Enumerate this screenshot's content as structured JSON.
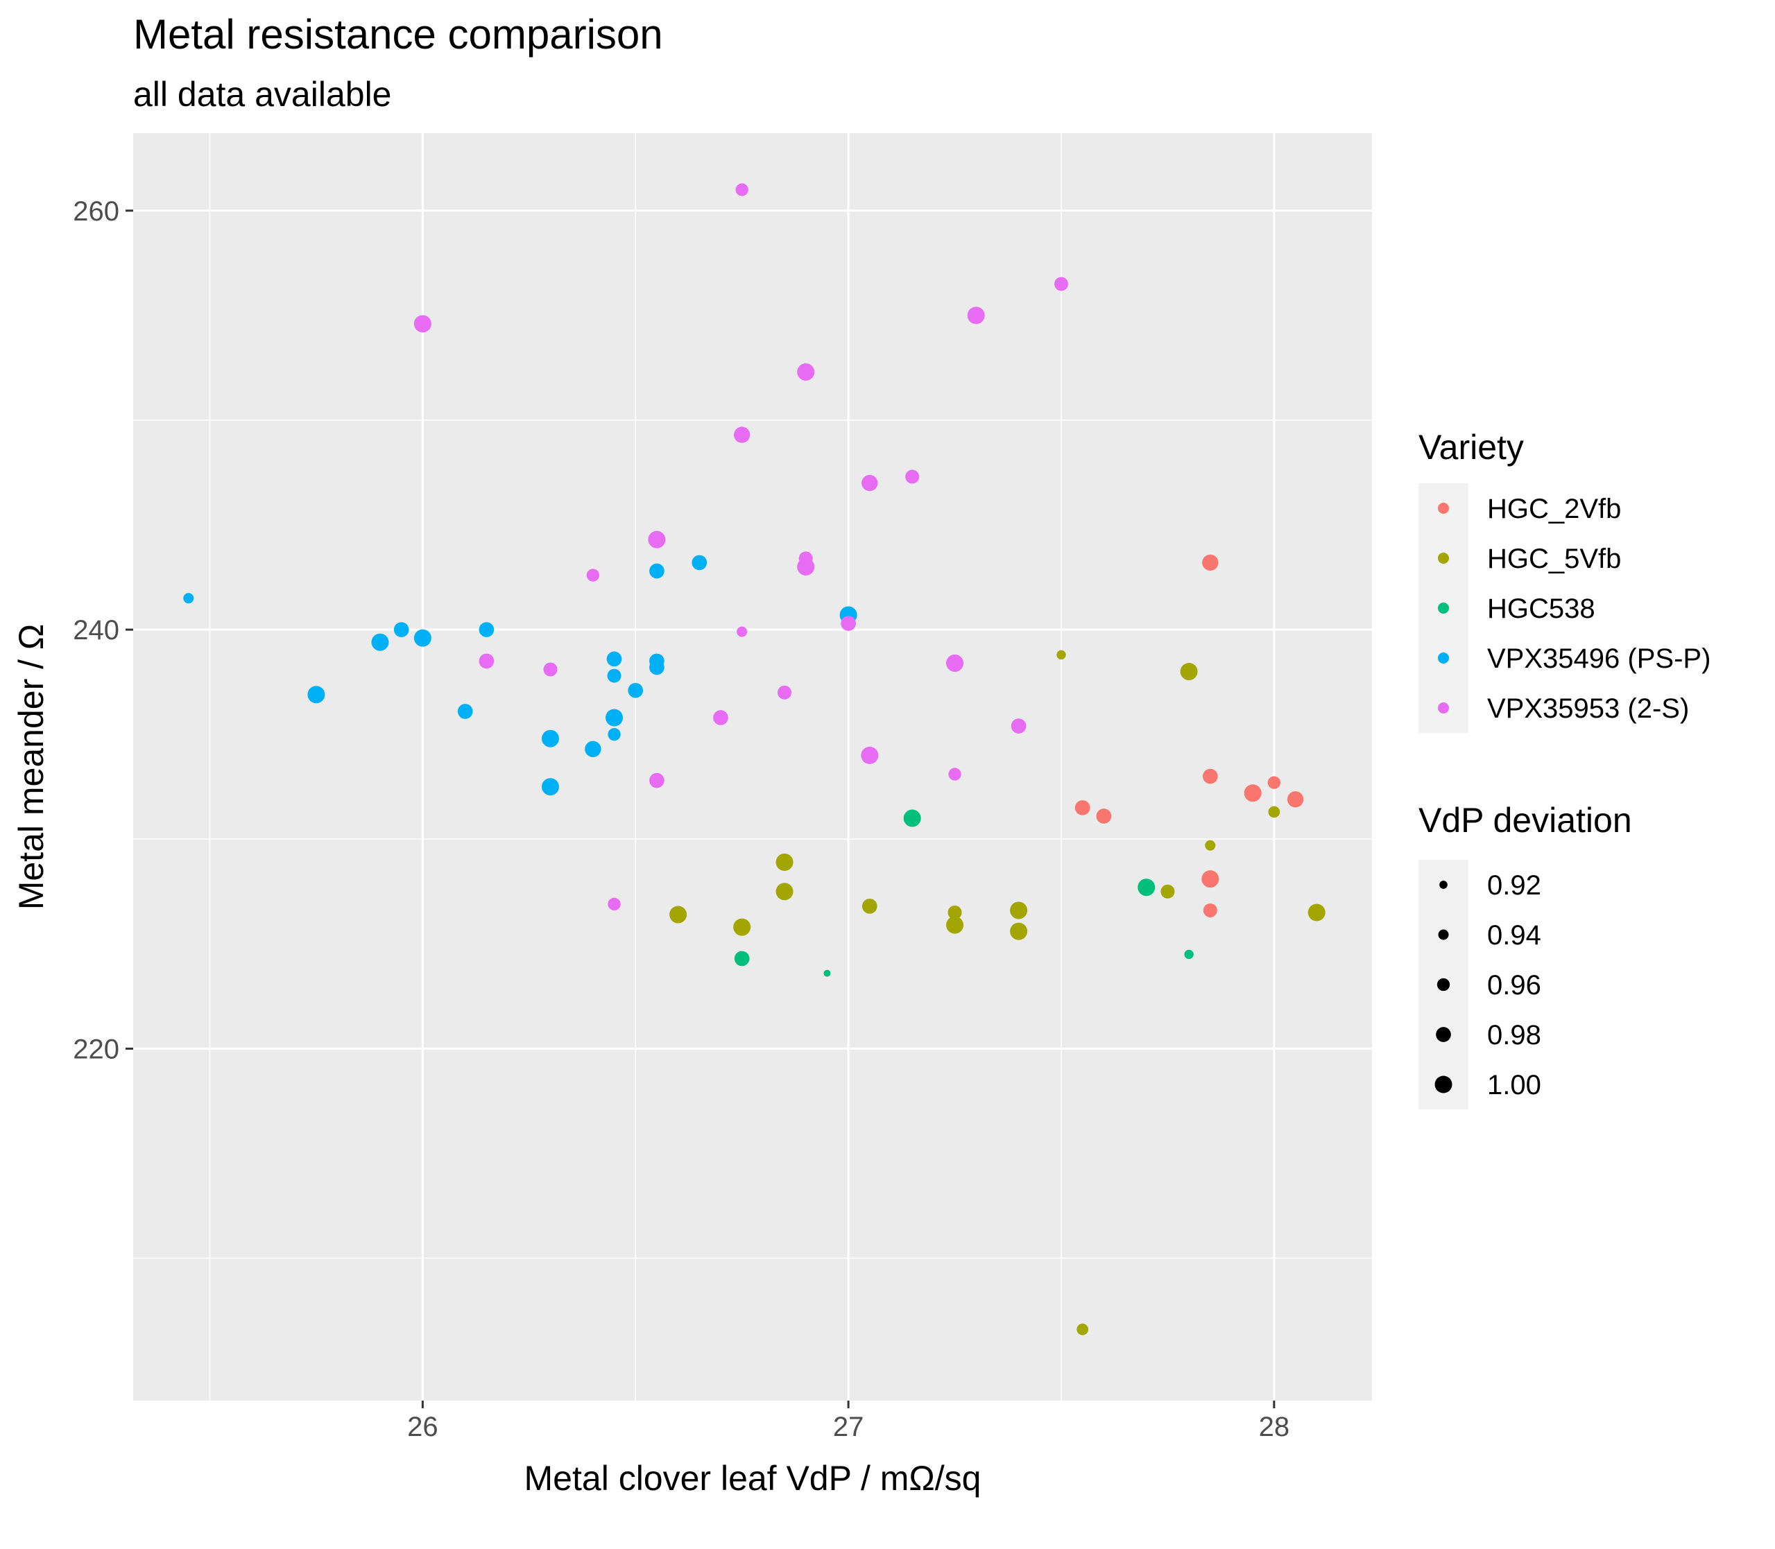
{
  "chart_data": {
    "type": "scatter",
    "title": "Metal resistance comparison",
    "subtitle": "all data available",
    "xlabel": "Metal clover leaf VdP / mΩ/sq",
    "ylabel": "Metal meander / Ω",
    "xlim": [
      25.32,
      28.23
    ],
    "ylim": [
      203.2,
      263.7
    ],
    "x_ticks": [
      26,
      27,
      28
    ],
    "x_tick_labels": [
      "26",
      "27",
      "28"
    ],
    "y_ticks": [
      220,
      240,
      260
    ],
    "y_tick_labels": [
      "220",
      "240",
      "260"
    ],
    "x_minor_ticks": [
      25.5,
      26.5,
      27.5
    ],
    "y_minor_ticks": [
      210,
      230,
      250
    ],
    "background": "#ebebeb",
    "grid": true,
    "legend_position": "right",
    "color_legend": {
      "title": "Variety",
      "entries": [
        {
          "name": "HGC_2Vfb",
          "color": "#F8766D"
        },
        {
          "name": "HGC_5Vfb",
          "color": "#A3A500"
        },
        {
          "name": "HGC538",
          "color": "#00BF7D"
        },
        {
          "name": "VPX35496 (PS-P)",
          "color": "#00B0F6"
        },
        {
          "name": "VPX35953 (2-S)",
          "color": "#E76BF3"
        }
      ]
    },
    "size_legend": {
      "title": "VdP deviation",
      "entries": [
        "0.92",
        "0.94",
        "0.96",
        "0.98",
        "1.00"
      ],
      "values": [
        0.92,
        0.94,
        0.96,
        0.98,
        1.0
      ]
    },
    "series": [
      {
        "variety": "HGC_2Vfb",
        "points": [
          {
            "x": 27.85,
            "y": 243.2,
            "s": 0.99
          },
          {
            "x": 27.85,
            "y": 233.0,
            "s": 0.98
          },
          {
            "x": 27.95,
            "y": 232.2,
            "s": 1.0
          },
          {
            "x": 28.0,
            "y": 232.7,
            "s": 0.96
          },
          {
            "x": 28.05,
            "y": 231.9,
            "s": 0.99
          },
          {
            "x": 27.55,
            "y": 231.5,
            "s": 0.98
          },
          {
            "x": 27.6,
            "y": 231.1,
            "s": 0.98
          },
          {
            "x": 27.85,
            "y": 228.1,
            "s": 1.0
          },
          {
            "x": 27.85,
            "y": 226.6,
            "s": 0.97
          }
        ]
      },
      {
        "variety": "HGC_5Vfb",
        "points": [
          {
            "x": 27.5,
            "y": 238.8,
            "s": 0.93
          },
          {
            "x": 27.8,
            "y": 238.0,
            "s": 1.0
          },
          {
            "x": 28.0,
            "y": 231.3,
            "s": 0.95
          },
          {
            "x": 27.85,
            "y": 229.7,
            "s": 0.94
          },
          {
            "x": 26.85,
            "y": 228.9,
            "s": 1.0
          },
          {
            "x": 26.85,
            "y": 227.5,
            "s": 1.0
          },
          {
            "x": 27.75,
            "y": 227.5,
            "s": 0.97
          },
          {
            "x": 27.05,
            "y": 226.8,
            "s": 0.98
          },
          {
            "x": 27.25,
            "y": 226.5,
            "s": 0.97
          },
          {
            "x": 27.4,
            "y": 226.6,
            "s": 1.0
          },
          {
            "x": 26.6,
            "y": 226.4,
            "s": 1.0
          },
          {
            "x": 28.1,
            "y": 226.5,
            "s": 1.0
          },
          {
            "x": 26.75,
            "y": 225.8,
            "s": 1.0
          },
          {
            "x": 27.25,
            "y": 225.9,
            "s": 1.0
          },
          {
            "x": 27.4,
            "y": 225.6,
            "s": 1.0
          },
          {
            "x": 27.55,
            "y": 206.6,
            "s": 0.95
          }
        ]
      },
      {
        "variety": "HGC538",
        "points": [
          {
            "x": 27.15,
            "y": 231.0,
            "s": 1.0
          },
          {
            "x": 27.7,
            "y": 227.7,
            "s": 1.0
          },
          {
            "x": 26.75,
            "y": 224.3,
            "s": 0.98
          },
          {
            "x": 27.8,
            "y": 224.5,
            "s": 0.93
          },
          {
            "x": 26.95,
            "y": 223.6,
            "s": 0.91
          }
        ]
      },
      {
        "variety": "VPX35496 (PS-P)",
        "points": [
          {
            "x": 25.45,
            "y": 241.5,
            "s": 0.94
          },
          {
            "x": 26.65,
            "y": 243.2,
            "s": 0.98
          },
          {
            "x": 26.55,
            "y": 242.8,
            "s": 0.98
          },
          {
            "x": 27.0,
            "y": 240.7,
            "s": 1.0
          },
          {
            "x": 25.95,
            "y": 240.0,
            "s": 0.98
          },
          {
            "x": 26.15,
            "y": 240.0,
            "s": 0.98
          },
          {
            "x": 25.9,
            "y": 239.4,
            "s": 1.0
          },
          {
            "x": 26.0,
            "y": 239.6,
            "s": 1.0
          },
          {
            "x": 26.45,
            "y": 238.6,
            "s": 0.98
          },
          {
            "x": 26.55,
            "y": 238.5,
            "s": 0.98
          },
          {
            "x": 26.55,
            "y": 238.2,
            "s": 0.98
          },
          {
            "x": 26.45,
            "y": 237.8,
            "s": 0.97
          },
          {
            "x": 26.5,
            "y": 237.1,
            "s": 0.98
          },
          {
            "x": 25.75,
            "y": 236.9,
            "s": 1.0
          },
          {
            "x": 26.1,
            "y": 236.1,
            "s": 0.98
          },
          {
            "x": 26.45,
            "y": 235.8,
            "s": 1.0
          },
          {
            "x": 26.45,
            "y": 235.0,
            "s": 0.96
          },
          {
            "x": 26.3,
            "y": 234.8,
            "s": 1.0
          },
          {
            "x": 26.4,
            "y": 234.3,
            "s": 0.99
          },
          {
            "x": 26.3,
            "y": 232.5,
            "s": 1.0
          }
        ]
      },
      {
        "variety": "VPX35953 (2-S)",
        "points": [
          {
            "x": 26.75,
            "y": 261.0,
            "s": 0.96
          },
          {
            "x": 27.5,
            "y": 256.5,
            "s": 0.97
          },
          {
            "x": 27.3,
            "y": 255.0,
            "s": 1.0
          },
          {
            "x": 26.0,
            "y": 254.6,
            "s": 1.0
          },
          {
            "x": 26.9,
            "y": 252.3,
            "s": 1.0
          },
          {
            "x": 26.75,
            "y": 249.3,
            "s": 0.99
          },
          {
            "x": 27.15,
            "y": 247.3,
            "s": 0.97
          },
          {
            "x": 27.05,
            "y": 247.0,
            "s": 0.99
          },
          {
            "x": 26.55,
            "y": 244.3,
            "s": 1.0
          },
          {
            "x": 26.9,
            "y": 243.4,
            "s": 0.97
          },
          {
            "x": 26.9,
            "y": 243.0,
            "s": 1.0
          },
          {
            "x": 26.4,
            "y": 242.6,
            "s": 0.96
          },
          {
            "x": 27.0,
            "y": 240.3,
            "s": 0.98
          },
          {
            "x": 26.75,
            "y": 239.9,
            "s": 0.94
          },
          {
            "x": 26.15,
            "y": 238.5,
            "s": 0.98
          },
          {
            "x": 27.25,
            "y": 238.4,
            "s": 1.0
          },
          {
            "x": 26.3,
            "y": 238.1,
            "s": 0.97
          },
          {
            "x": 26.85,
            "y": 237.0,
            "s": 0.97
          },
          {
            "x": 26.7,
            "y": 235.8,
            "s": 0.98
          },
          {
            "x": 27.4,
            "y": 235.4,
            "s": 0.98
          },
          {
            "x": 27.05,
            "y": 234.0,
            "s": 1.0
          },
          {
            "x": 27.25,
            "y": 233.1,
            "s": 0.96
          },
          {
            "x": 26.55,
            "y": 232.8,
            "s": 0.98
          },
          {
            "x": 26.45,
            "y": 226.9,
            "s": 0.96
          }
        ]
      }
    ]
  }
}
